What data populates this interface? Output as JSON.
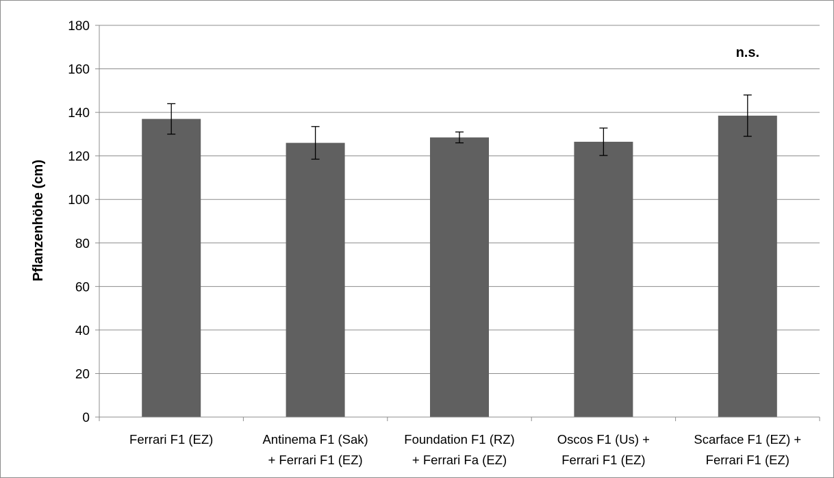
{
  "chart_data": {
    "type": "bar",
    "title": "",
    "xlabel": "",
    "ylabel": "Pflanzenhöhe (cm)",
    "ylim": [
      0,
      180
    ],
    "yticks": [
      0,
      20,
      40,
      60,
      80,
      100,
      120,
      140,
      160,
      180
    ],
    "grid": true,
    "legend": "none",
    "categories": [
      [
        "Ferrari F1 (EZ)"
      ],
      [
        "Antinema F1 (Sak)",
        "+ Ferrari F1 (EZ)"
      ],
      [
        "Foundation F1 (RZ)",
        "+ Ferrari Fa (EZ)"
      ],
      [
        "Oscos F1 (Us) +",
        "Ferrari F1 (EZ)"
      ],
      [
        "Scarface F1 (EZ) +",
        "Ferrari F1 (EZ)"
      ]
    ],
    "series": [
      {
        "values": [
          137,
          126,
          128.5,
          126.5,
          138.5
        ],
        "error": [
          7,
          7.5,
          2.5,
          6.3,
          9.5
        ]
      }
    ],
    "annotations": [
      "n.s."
    ],
    "colors": {
      "bar": "#606060",
      "grid": "#8c8c8c",
      "axis": "#8c8c8c"
    }
  }
}
